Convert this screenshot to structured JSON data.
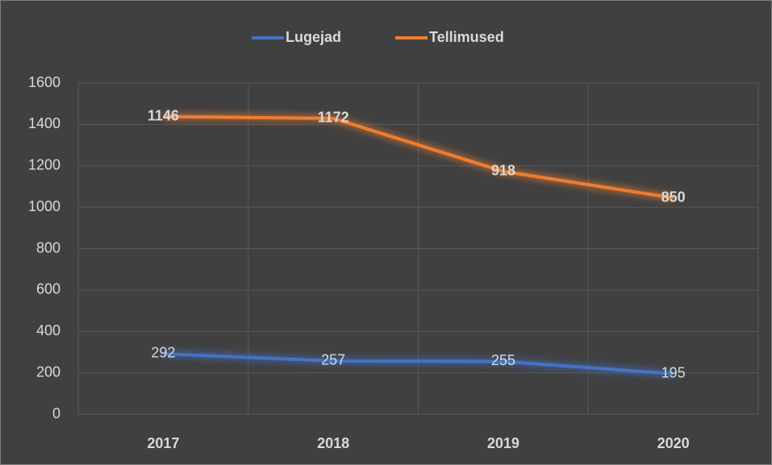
{
  "chart_data": {
    "type": "line",
    "stacked": true,
    "categories": [
      "2017",
      "2018",
      "2019",
      "2020"
    ],
    "series": [
      {
        "name": "Lugejad",
        "color": "#4472c4",
        "values": [
          292,
          257,
          255,
          195
        ]
      },
      {
        "name": "Tellimused",
        "color": "#ed7d31",
        "values": [
          1146,
          1172,
          918,
          850
        ]
      }
    ],
    "ylim": [
      0,
      1600
    ],
    "yticks": [
      0,
      200,
      400,
      600,
      800,
      1000,
      1200,
      1400,
      1600
    ],
    "grid": true,
    "legend": "top"
  }
}
